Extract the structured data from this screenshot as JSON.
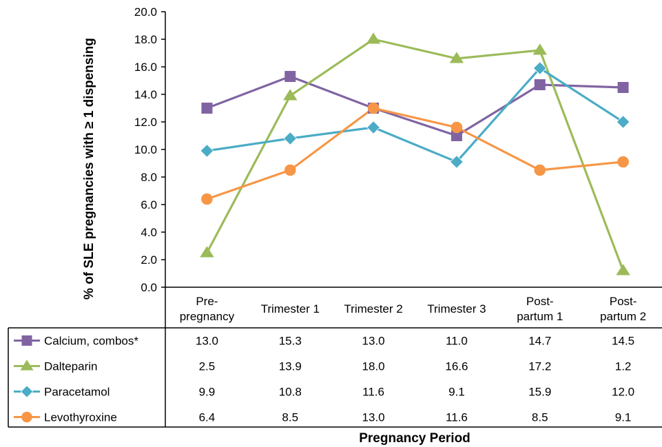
{
  "chart_data": {
    "type": "line",
    "title": "",
    "xlabel": "Pregnancy Period",
    "ylabel": "% of SLE pregnancies with ≥ 1 dispensing",
    "ylim": [
      0,
      20
    ],
    "yticks": [
      "0.0",
      "2.0",
      "4.0",
      "6.0",
      "8.0",
      "10.0",
      "12.0",
      "14.0",
      "16.0",
      "18.0",
      "20.0"
    ],
    "categories": [
      [
        "Pre-",
        "pregnancy"
      ],
      [
        "Trimester 1"
      ],
      [
        "Trimester 2"
      ],
      [
        "Trimester 3"
      ],
      [
        "Post-",
        "partum 1"
      ],
      [
        "Post-",
        "partum 2"
      ]
    ],
    "grid": false,
    "legend": "data-table-left",
    "series": [
      {
        "name": "Calcium, combos*",
        "marker": "square",
        "color": "#8064A2",
        "values": [
          13.0,
          15.3,
          13.0,
          11.0,
          14.7,
          14.5
        ],
        "labels": [
          "13.0",
          "15.3",
          "13.0",
          "11.0",
          "14.7",
          "14.5"
        ]
      },
      {
        "name": "Dalteparin",
        "marker": "triangle",
        "color": "#9BBB59",
        "values": [
          2.5,
          13.9,
          18.0,
          16.6,
          17.2,
          1.2
        ],
        "labels": [
          "2.5",
          "13.9",
          "18.0",
          "16.6",
          "17.2",
          "1.2"
        ]
      },
      {
        "name": "Paracetamol",
        "marker": "diamond",
        "color": "#4BACC6",
        "values": [
          9.9,
          10.8,
          11.6,
          9.1,
          15.9,
          12.0
        ],
        "labels": [
          "9.9",
          "10.8",
          "11.6",
          "9.1",
          "15.9",
          "12.0"
        ]
      },
      {
        "name": "Levothyroxine",
        "marker": "circle",
        "color": "#F79646",
        "values": [
          6.4,
          8.5,
          13.0,
          11.6,
          8.5,
          9.1
        ],
        "labels": [
          "6.4",
          "8.5",
          "13.0",
          "11.6",
          "8.5",
          "9.1"
        ]
      }
    ]
  }
}
